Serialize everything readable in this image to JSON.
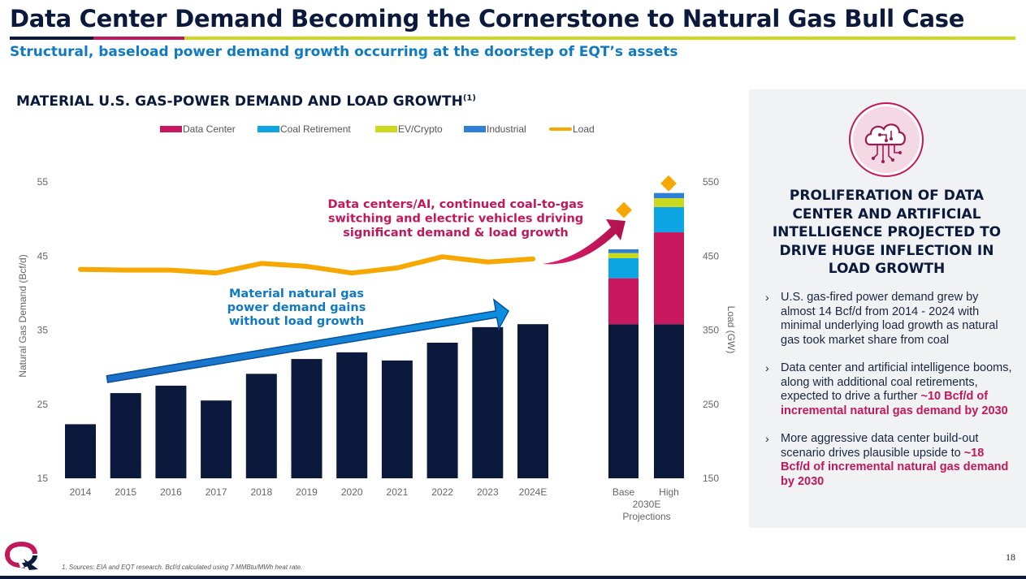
{
  "header": {
    "title": "Data Center Demand Becoming the Cornerstone to Natural Gas Bull Case",
    "subtitle": "Structural, baseload power demand growth occurring at the doorstep of EQT’s assets",
    "bar_colors": [
      "#0b1a3c",
      "#c2185b",
      "#cbd91f"
    ]
  },
  "chart_heading": {
    "text": "MATERIAL U.S. GAS-POWER DEMAND AND LOAD GROWTH",
    "note": "(1)"
  },
  "chart_data": {
    "type": "bar",
    "ylabel": "Natural Gas Demand (Bcf/d)",
    "y2label": "Load (GW)",
    "ylim": [
      15,
      55
    ],
    "y2lim": [
      150,
      550
    ],
    "yticks": [
      15,
      25,
      35,
      45,
      55
    ],
    "y2ticks": [
      150,
      250,
      350,
      450,
      550
    ],
    "legend": [
      {
        "name": "Data Center",
        "color": "#c8175d"
      },
      {
        "name": "Coal Retirement",
        "color": "#0ea5e4"
      },
      {
        "name": "EV/Crypto",
        "color": "#cbd91f"
      },
      {
        "name": "Industrial",
        "color": "#2f7fd6"
      },
      {
        "name": "Load",
        "color": "#f6a800"
      }
    ],
    "historical": {
      "categories": [
        "2014",
        "2015",
        "2016",
        "2017",
        "2018",
        "2019",
        "2020",
        "2021",
        "2022",
        "2023",
        "2024E"
      ],
      "values": [
        22.3,
        26.5,
        27.5,
        25.5,
        29.1,
        31.1,
        32.0,
        30.9,
        33.3,
        35.4,
        35.8
      ],
      "load": [
        432,
        431,
        431,
        427,
        440,
        436,
        427,
        434,
        449,
        442,
        446
      ],
      "color": "#0b1a3c"
    },
    "projections": {
      "group_label": "2030E\nProjections",
      "bars": [
        {
          "category": "Base",
          "base": 35.8,
          "data_center": 6.2,
          "coal_retirement": 2.7,
          "ev_crypto": 0.7,
          "industrial": 0.5,
          "load": 512
        },
        {
          "category": "High",
          "base": 35.8,
          "data_center": 12.4,
          "coal_retirement": 3.4,
          "ev_crypto": 1.2,
          "industrial": 0.7,
          "load": 548
        }
      ]
    },
    "annotations": [
      {
        "text": "Material natural gas\npower demand gains\nwithout load growth",
        "color": "#0f7ac3"
      },
      {
        "text": "Data centers/AI, continued coal-to-gas\nswitching and electric vehicles driving\nsignificant demand & load growth",
        "color": "#c2185b"
      }
    ]
  },
  "panel": {
    "heading": "PROLIFERATION OF DATA CENTER AND ARTIFICIAL INTELLIGENCE PROJECTED TO DRIVE HUGE INFLECTION IN LOAD GROWTH",
    "icon": "cloud-circuit-icon",
    "bullets": [
      {
        "text": "U.S. gas-fired power demand grew by almost 14 Bcf/d from 2014 - 2024 with minimal underlying load growth as natural gas took market share from coal",
        "highlight": ""
      },
      {
        "text": "Data center and artificial intelligence booms, along with additional coal retirements, expected to drive a further ",
        "highlight": "~10 Bcf/d of incremental natural gas demand by 2030"
      },
      {
        "text": "More aggressive data center build-out scenario drives plausible upside to ",
        "highlight": "~18 Bcf/d of incremental natural gas demand by 2030"
      }
    ]
  },
  "footer": {
    "footnote": "1. Sources: EIA and EQT research. Bcf/d calculated using 7 MMBtu/MWh heat rate.",
    "page_number": "18",
    "logo": "eqt-logo-icon"
  }
}
